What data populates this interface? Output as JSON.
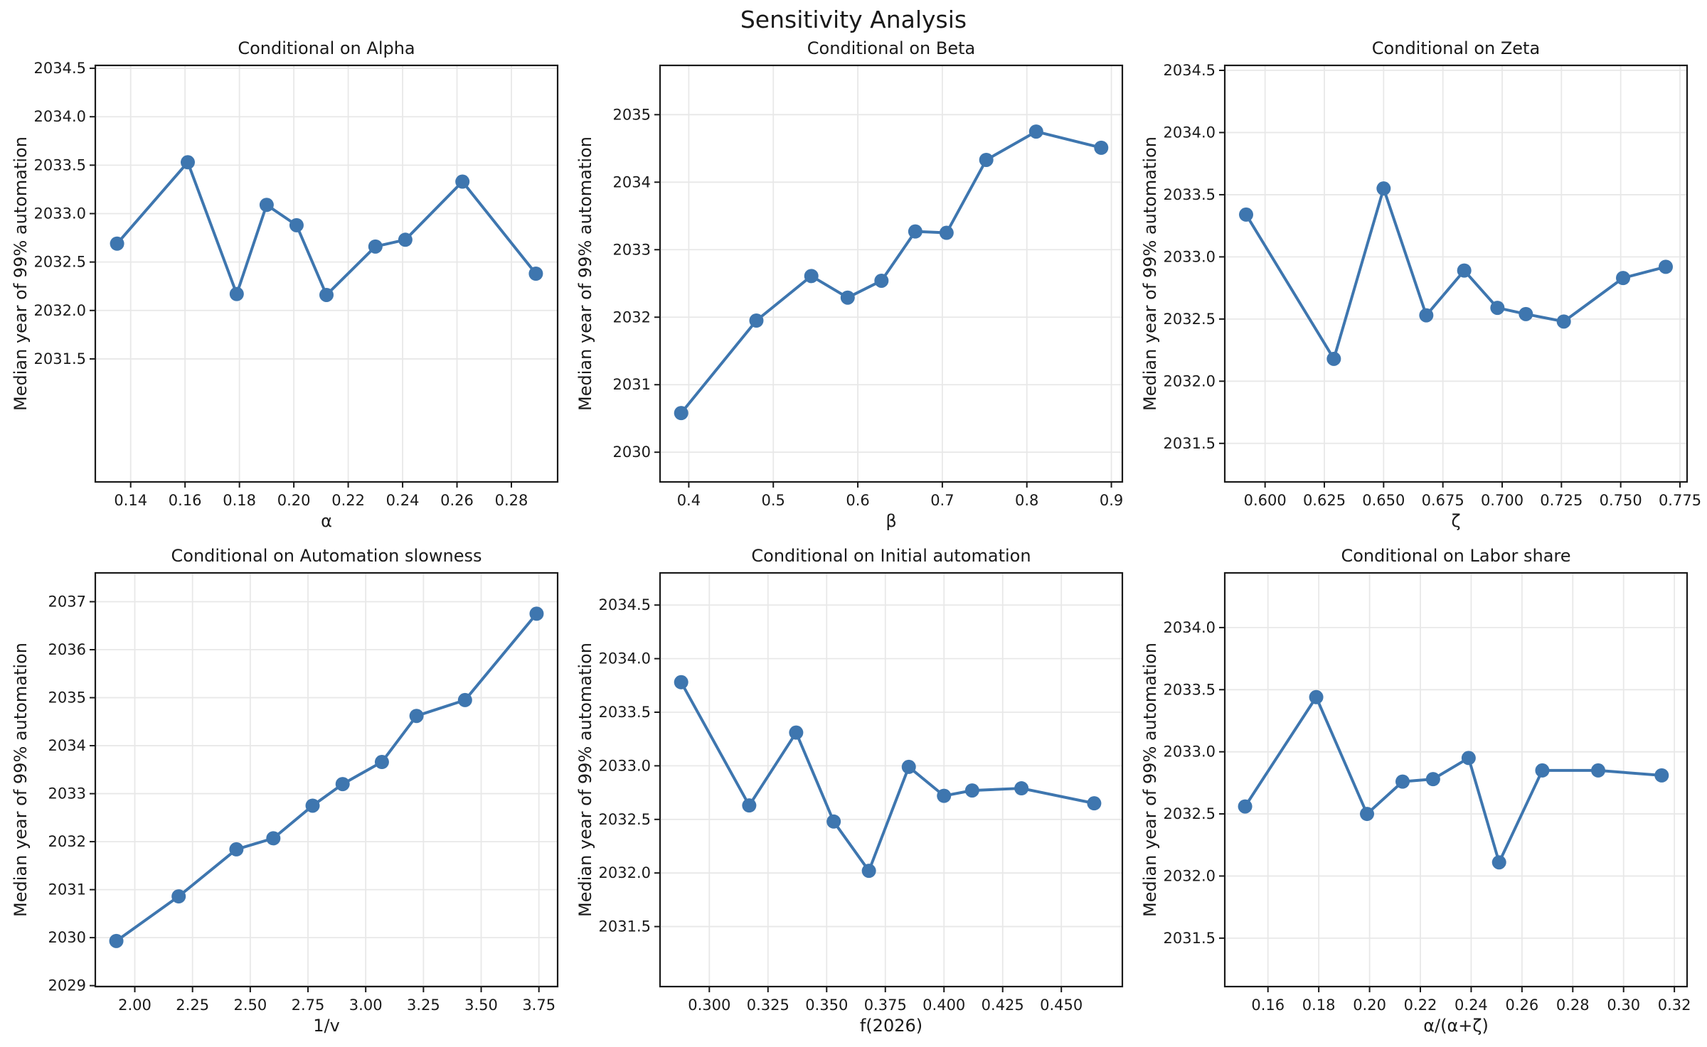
{
  "figure": {
    "suptitle": "Sensitivity Analysis",
    "ylabel": "Median year of 99% automation",
    "colors": {
      "line": "#3E76AF",
      "grid": "#e8e8e8",
      "spine": "#1a1a1a",
      "text": "#1a1a1a",
      "background": "#ffffff"
    }
  },
  "chart_data": [
    {
      "type": "line",
      "title": "Conditional on Alpha",
      "xlabel": "α",
      "ylabel": "Median year of 99% automation",
      "x": [
        0.135,
        0.161,
        0.179,
        0.19,
        0.201,
        0.212,
        0.23,
        0.241,
        0.262,
        0.289
      ],
      "y": [
        2032.69,
        2033.53,
        2032.17,
        2033.09,
        2032.88,
        2032.16,
        2032.66,
        2032.73,
        2033.33,
        2032.38
      ],
      "xlim": [
        0.127,
        0.297
      ],
      "ylim": [
        2030.23,
        2034.53
      ],
      "xticks": [
        0.14,
        0.16,
        0.18,
        0.2,
        0.22,
        0.24,
        0.26,
        0.28
      ],
      "yticks": [
        2031.5,
        2032.0,
        2032.5,
        2033.0,
        2033.5,
        2034.0,
        2034.5
      ],
      "xtick_decimals": 2,
      "ytick_decimals": 1,
      "grid": true,
      "legend": null
    },
    {
      "type": "line",
      "title": "Conditional on Beta",
      "xlabel": "β",
      "ylabel": "Median year of 99% automation",
      "x": [
        0.391,
        0.48,
        0.545,
        0.588,
        0.628,
        0.668,
        0.705,
        0.752,
        0.811,
        0.888
      ],
      "y": [
        2030.58,
        2031.95,
        2032.61,
        2032.29,
        2032.54,
        2033.27,
        2033.25,
        2034.33,
        2034.75,
        2034.51
      ],
      "xlim": [
        0.366,
        0.913
      ],
      "ylim": [
        2029.56,
        2035.73
      ],
      "xticks": [
        0.4,
        0.5,
        0.6,
        0.7,
        0.8,
        0.9
      ],
      "yticks": [
        2030,
        2031,
        2032,
        2033,
        2034,
        2035
      ],
      "xtick_decimals": 1,
      "ytick_decimals": 0,
      "grid": true,
      "legend": null
    },
    {
      "type": "line",
      "title": "Conditional on Zeta",
      "xlabel": "ζ",
      "ylabel": "Median year of 99% automation",
      "x": [
        0.592,
        0.629,
        0.65,
        0.668,
        0.684,
        0.698,
        0.71,
        0.726,
        0.751,
        0.769
      ],
      "y": [
        2033.34,
        2032.18,
        2033.55,
        2032.53,
        2032.89,
        2032.59,
        2032.54,
        2032.48,
        2032.83,
        2032.92
      ],
      "xlim": [
        0.583,
        0.778
      ],
      "ylim": [
        2031.19,
        2034.54
      ],
      "xticks": [
        0.6,
        0.625,
        0.65,
        0.675,
        0.7,
        0.725,
        0.75,
        0.775
      ],
      "yticks": [
        2031.5,
        2032.0,
        2032.5,
        2033.0,
        2033.5,
        2034.0,
        2034.5
      ],
      "xtick_decimals": 3,
      "ytick_decimals": 1,
      "grid": true,
      "legend": null
    },
    {
      "type": "line",
      "title": "Conditional on Automation slowness",
      "xlabel": "1/v",
      "ylabel": "Median year of 99% automation",
      "x": [
        1.92,
        2.19,
        2.44,
        2.6,
        2.77,
        2.9,
        3.07,
        3.22,
        3.43,
        3.74
      ],
      "y": [
        2029.93,
        2030.86,
        2031.84,
        2032.07,
        2032.75,
        2033.2,
        2033.66,
        2034.62,
        2034.95,
        2036.75
      ],
      "xlim": [
        1.829,
        3.831
      ],
      "ylim": [
        2028.98,
        2037.6
      ],
      "xticks": [
        2.0,
        2.25,
        2.5,
        2.75,
        3.0,
        3.25,
        3.5,
        3.75
      ],
      "yticks": [
        2029,
        2030,
        2031,
        2032,
        2033,
        2034,
        2035,
        2036,
        2037
      ],
      "xtick_decimals": 2,
      "ytick_decimals": 0,
      "grid": true,
      "legend": null
    },
    {
      "type": "line",
      "title": "Conditional on Initial automation",
      "xlabel": "f(2026)",
      "ylabel": "Median year of 99% automation",
      "x": [
        0.288,
        0.317,
        0.337,
        0.353,
        0.368,
        0.385,
        0.4,
        0.412,
        0.433,
        0.464
      ],
      "y": [
        2033.78,
        2032.63,
        2033.31,
        2032.48,
        2032.02,
        2032.99,
        2032.72,
        2032.77,
        2032.79,
        2032.65
      ],
      "xlim": [
        0.279,
        0.476
      ],
      "ylim": [
        2030.94,
        2034.8
      ],
      "xticks": [
        0.3,
        0.325,
        0.35,
        0.375,
        0.4,
        0.425,
        0.45
      ],
      "yticks": [
        2031.5,
        2032.0,
        2032.5,
        2033.0,
        2033.5,
        2034.0,
        2034.5
      ],
      "xtick_decimals": 3,
      "ytick_decimals": 1,
      "grid": true,
      "legend": null
    },
    {
      "type": "line",
      "title": "Conditional on Labor share",
      "xlabel": "α/(α+ζ)",
      "ylabel": "Median year of 99% automation",
      "x": [
        0.151,
        0.179,
        0.199,
        0.213,
        0.225,
        0.239,
        0.251,
        0.268,
        0.29,
        0.315
      ],
      "y": [
        2032.56,
        2033.44,
        2032.5,
        2032.76,
        2032.78,
        2032.95,
        2032.11,
        2032.85,
        2032.85,
        2032.81
      ],
      "xlim": [
        0.143,
        0.325
      ],
      "ylim": [
        2031.11,
        2034.44
      ],
      "xticks": [
        0.16,
        0.18,
        0.2,
        0.22,
        0.24,
        0.26,
        0.28,
        0.3,
        0.32
      ],
      "yticks": [
        2031.5,
        2032.0,
        2032.5,
        2033.0,
        2033.5,
        2034.0
      ],
      "xtick_decimals": 2,
      "ytick_decimals": 1,
      "grid": true,
      "legend": null
    }
  ]
}
